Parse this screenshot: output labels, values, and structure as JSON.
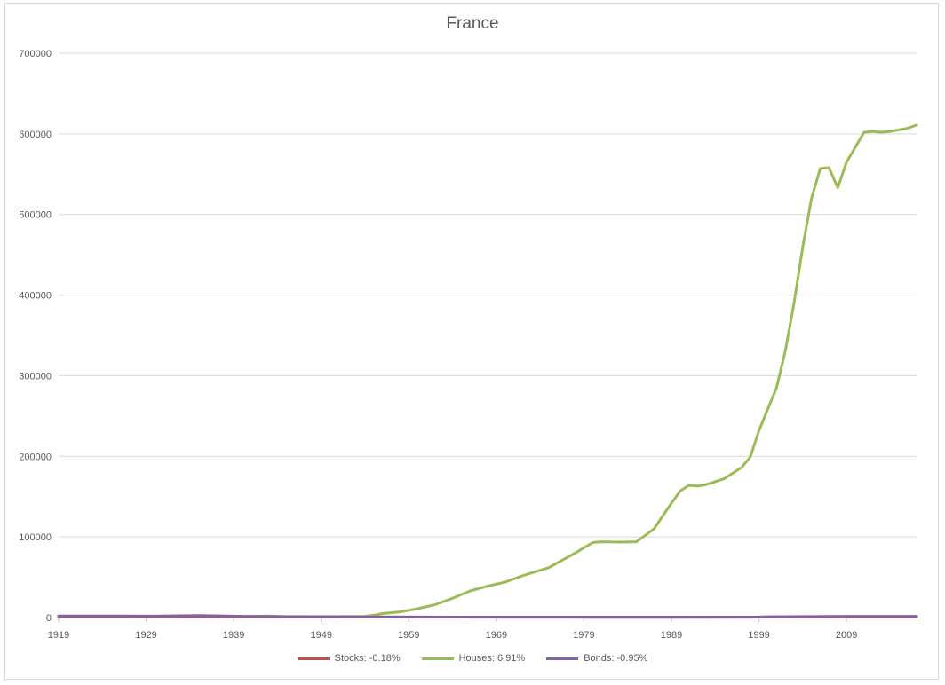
{
  "chart_data": {
    "type": "line",
    "title": "France",
    "xlabel": "",
    "ylabel": "",
    "xlim": [
      1919,
      2017
    ],
    "ylim": [
      0,
      700000
    ],
    "y_ticks": [
      "0",
      "100000",
      "200000",
      "300000",
      "400000",
      "500000",
      "600000",
      "700000"
    ],
    "x_ticks": [
      "1919",
      "1929",
      "1939",
      "1949",
      "1959",
      "1969",
      "1979",
      "1989",
      "1999",
      "2009"
    ],
    "grid": true,
    "legend_position": "bottom",
    "series": [
      {
        "name": "Stocks: -0.18%",
        "color": "#c0504d",
        "x": [
          1919,
          1930,
          1940,
          1950,
          1960,
          1970,
          1980,
          1990,
          2000,
          2010,
          2017
        ],
        "y": [
          1000,
          1000,
          900,
          800,
          700,
          600,
          600,
          600,
          600,
          600,
          600
        ]
      },
      {
        "name": "Houses: 6.91%",
        "color": "#9bbb59",
        "x": [
          1919,
          1925,
          1927,
          1930,
          1935,
          1937,
          1940,
          1943,
          1945,
          1950,
          1954,
          1955,
          1956,
          1958,
          1960,
          1962,
          1964,
          1966,
          1968,
          1970,
          1972,
          1975,
          1978,
          1980,
          1981,
          1983,
          1985,
          1987,
          1989,
          1990,
          1991,
          1992,
          1993,
          1995,
          1997,
          1998,
          1999,
          2001,
          2002,
          2003,
          2004,
          2005,
          2006,
          2007,
          2008,
          2009,
          2011,
          2012,
          2013,
          2014,
          2016,
          2017
        ],
        "y": [
          1000,
          1200,
          1500,
          1600,
          1800,
          1500,
          1400,
          2000,
          1200,
          1200,
          1500,
          3000,
          5000,
          7000,
          11000,
          16000,
          24000,
          33000,
          39000,
          44000,
          52000,
          62000,
          80000,
          93000,
          94000,
          93500,
          94000,
          110000,
          142000,
          157000,
          164000,
          163000,
          165000,
          172000,
          186000,
          199000,
          232000,
          285000,
          330000,
          390000,
          460000,
          520000,
          557000,
          558000,
          533000,
          565000,
          602000,
          603000,
          602000,
          603000,
          607000,
          611000
        ]
      },
      {
        "name": "Bonds: -0.95%",
        "color": "#8064a2",
        "x": [
          1919,
          1925,
          1930,
          1935,
          1940,
          1945,
          1950,
          1960,
          1970,
          1980,
          1990,
          1998,
          2000,
          2010,
          2017
        ],
        "y": [
          2000,
          2000,
          1800,
          2400,
          1500,
          1000,
          800,
          600,
          400,
          300,
          300,
          400,
          1000,
          1500,
          1500
        ]
      }
    ]
  }
}
